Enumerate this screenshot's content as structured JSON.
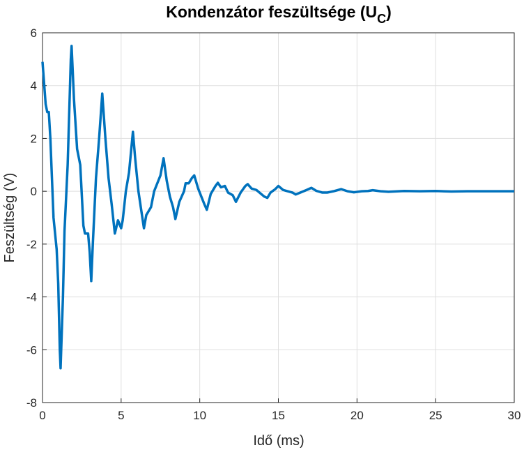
{
  "chart_data": {
    "type": "line",
    "title": [
      "Kondenzátor feszültsége (U",
      "C",
      ")"
    ],
    "xlabel": "Idő (ms)",
    "ylabel": "Feszültség (V)",
    "xlim": [
      0,
      30
    ],
    "ylim": [
      -8,
      6
    ],
    "xticks": [
      0,
      5,
      10,
      15,
      20,
      25,
      30
    ],
    "yticks": [
      -8,
      -6,
      -4,
      -2,
      0,
      2,
      4,
      6
    ],
    "grid": true,
    "series": [
      {
        "color": "#0072bd",
        "x": [
          0,
          0.2,
          0.3,
          0.4,
          0.5,
          0.7,
          0.9,
          1.0,
          1.1,
          1.15,
          1.3,
          1.4,
          1.6,
          1.8,
          1.85,
          2.0,
          2.2,
          2.4,
          2.6,
          2.7,
          2.9,
          3.0,
          3.1,
          3.2,
          3.4,
          3.6,
          3.8,
          4.0,
          4.2,
          4.4,
          4.6,
          4.8,
          5.0,
          5.1,
          5.3,
          5.5,
          5.75,
          5.9,
          6.1,
          6.3,
          6.45,
          6.6,
          6.9,
          7.1,
          7.3,
          7.5,
          7.7,
          7.9,
          8.1,
          8.3,
          8.45,
          8.7,
          9.0,
          9.1,
          9.3,
          9.5,
          9.65,
          9.9,
          10.1,
          10.3,
          10.45,
          10.7,
          11.0,
          11.15,
          11.35,
          11.6,
          11.8,
          12.1,
          12.3,
          12.6,
          12.9,
          13.05,
          13.3,
          13.6,
          13.9,
          14.1,
          14.3,
          14.5,
          14.8,
          15.0,
          15.3,
          15.6,
          15.9,
          16.1,
          16.4,
          16.8,
          17.1,
          17.4,
          17.8,
          18.1,
          18.5,
          19.0,
          19.4,
          19.8,
          20.3,
          20.7,
          21.0,
          21.5,
          22,
          23,
          24,
          25,
          26,
          27,
          28,
          29,
          30
        ],
        "values": [
          4.9,
          3.3,
          3.0,
          3.0,
          2.0,
          -1.0,
          -2.2,
          -3.5,
          -6.0,
          -6.7,
          -4.0,
          -1.5,
          1.0,
          5.0,
          5.5,
          3.5,
          1.6,
          1.0,
          -1.3,
          -1.6,
          -1.6,
          -2.3,
          -3.4,
          -2.0,
          0.5,
          2.0,
          3.7,
          2.0,
          0.5,
          -0.5,
          -1.6,
          -1.1,
          -1.4,
          -1.1,
          0,
          0.7,
          2.25,
          1.2,
          0,
          -0.8,
          -1.4,
          -0.9,
          -0.6,
          0,
          0.3,
          0.6,
          1.25,
          0.4,
          -0.2,
          -0.6,
          -1.05,
          -0.4,
          0,
          0.3,
          0.3,
          0.5,
          0.6,
          0.1,
          -0.2,
          -0.5,
          -0.7,
          -0.1,
          0.2,
          0.32,
          0.15,
          0.2,
          -0.05,
          -0.15,
          -0.4,
          -0.05,
          0.2,
          0.27,
          0.1,
          0.05,
          -0.1,
          -0.2,
          -0.25,
          -0.05,
          0.08,
          0.2,
          0.05,
          0,
          -0.05,
          -0.12,
          -0.05,
          0.05,
          0.13,
          0.02,
          -0.05,
          -0.05,
          0,
          0.08,
          0,
          -0.04,
          0,
          0.01,
          0.04,
          0,
          -0.02,
          0.01,
          0,
          0.01,
          -0.01,
          0,
          0,
          0,
          0
        ]
      }
    ]
  }
}
